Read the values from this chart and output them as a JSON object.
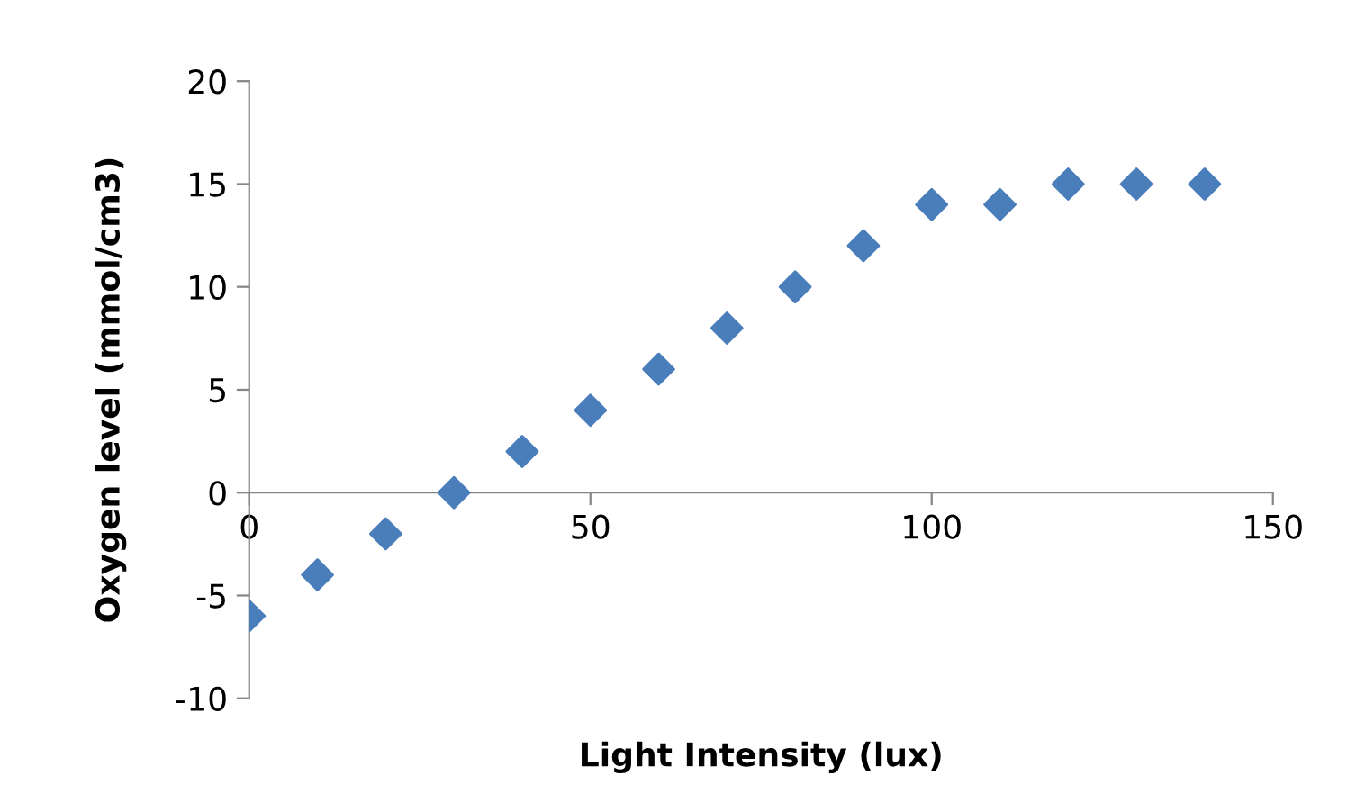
{
  "chart_data": {
    "type": "scatter",
    "xlabel": "Light Intensity (lux)",
    "ylabel": "Oxygen level (mmol/cm3)",
    "x": [
      0,
      10,
      20,
      30,
      40,
      50,
      60,
      70,
      80,
      90,
      100,
      110,
      120,
      130,
      140
    ],
    "series": [
      {
        "color": "#4a7ebb",
        "values": [
          -6,
          -4,
          -2,
          0,
          2,
          4,
          6,
          8,
          10,
          12,
          14,
          14,
          15,
          15,
          15
        ]
      }
    ],
    "xlim": [
      0,
      150
    ],
    "xticks": [
      0,
      50,
      100,
      150
    ],
    "ylim": [
      -10,
      20
    ],
    "yticks": [
      -10,
      -5,
      0,
      5,
      10,
      15,
      20
    ],
    "marker": "diamond",
    "grid": false,
    "legend": false
  }
}
